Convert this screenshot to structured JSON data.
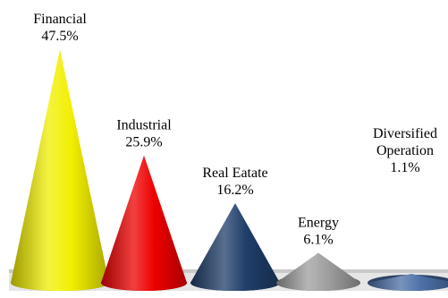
{
  "chart_data": {
    "type": "bar",
    "style": "3d-cone",
    "title": "",
    "xlabel": "",
    "ylabel": "",
    "categories": [
      "Financial",
      "Industrial",
      "Real Eatate",
      "Energy",
      "Diversified Operation"
    ],
    "values": [
      47.5,
      25.9,
      16.2,
      6.1,
      1.1
    ],
    "data_labels": [
      "47.5%",
      "25.9%",
      "16.2%",
      "6.1%",
      "1.1%"
    ],
    "label_lines": [
      [
        "Financial"
      ],
      [
        "Industrial"
      ],
      [
        "Real Eatate"
      ],
      [
        "Energy"
      ],
      [
        "Diversified",
        "Operation"
      ]
    ],
    "colors": [
      "#f2ef00",
      "#ee0000",
      "#1f3e69",
      "#9e9e9e",
      "#4b6fa6"
    ],
    "ylim": [
      0,
      47.5
    ],
    "grid": false,
    "legend": "none"
  }
}
